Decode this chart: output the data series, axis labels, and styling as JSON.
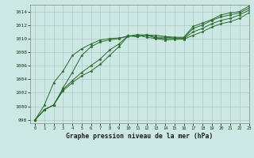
{
  "title": "Graphe pression niveau de la mer (hPa)",
  "background_color": "#cce8e4",
  "grid_color": "#b0c8c4",
  "line_color": "#2d6a2d",
  "xlim": [
    -0.5,
    23
  ],
  "ylim": [
    997.5,
    1015.0
  ],
  "yticks": [
    998,
    1000,
    1002,
    1004,
    1006,
    1008,
    1010,
    1012,
    1014
  ],
  "xticks": [
    0,
    1,
    2,
    3,
    4,
    5,
    6,
    7,
    8,
    9,
    10,
    11,
    12,
    13,
    14,
    15,
    16,
    17,
    18,
    19,
    20,
    21,
    22,
    23
  ],
  "series": [
    [
      998.0,
      999.5,
      1000.2,
      1002.7,
      1005.0,
      1007.5,
      1008.8,
      1009.5,
      1009.8,
      1010.0,
      1010.4,
      1010.3,
      1010.6,
      1010.2,
      1010.2,
      1010.1,
      1010.1,
      1011.5,
      1012.0,
      1012.7,
      1013.2,
      1013.5,
      1013.8,
      1014.5
    ],
    [
      998.0,
      999.5,
      1000.2,
      1002.5,
      1003.8,
      1005.0,
      1006.0,
      1007.0,
      1008.3,
      1009.2,
      1010.4,
      1010.3,
      1010.5,
      1010.1,
      1010.0,
      1010.0,
      1010.0,
      1011.0,
      1011.5,
      1012.2,
      1012.7,
      1013.0,
      1013.5,
      1014.2
    ],
    [
      998.0,
      999.5,
      1000.2,
      1002.3,
      1003.5,
      1004.5,
      1005.2,
      1006.2,
      1007.5,
      1008.8,
      1010.4,
      1010.5,
      1010.2,
      1010.0,
      1009.8,
      1009.9,
      1009.9,
      1010.5,
      1011.0,
      1011.7,
      1012.2,
      1012.5,
      1013.0,
      1013.8
    ],
    [
      998.0,
      1000.2,
      1003.5,
      1005.2,
      1007.5,
      1008.5,
      1009.2,
      1009.8,
      1010.0,
      1010.1,
      1010.3,
      1010.6,
      1010.5,
      1010.5,
      1010.3,
      1010.2,
      1010.2,
      1011.8,
      1012.3,
      1012.8,
      1013.5,
      1013.8,
      1014.0,
      1014.8
    ]
  ]
}
